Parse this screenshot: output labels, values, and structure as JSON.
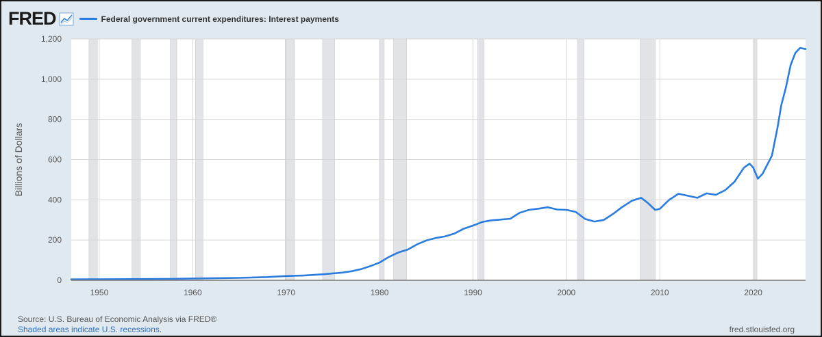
{
  "logo_text": "FRED",
  "logo_icon": "chart-line-icon",
  "footer": {
    "source": "Source: U.S. Bureau of Economic Analysis via FRED®",
    "shaded_note": "Shaded areas indicate U.S. recessions.",
    "site": "fred.stlouisfed.org"
  },
  "colors": {
    "line": "#2a7ddf",
    "plot_bg": "#ffffff",
    "page_bg": "#e1e9f0",
    "grid": "#d6d6d6",
    "recession": "#e1e3e6"
  },
  "chart_data": {
    "type": "line",
    "ylabel": "Billions of Dollars",
    "xlabel": "",
    "xlim": [
      1947,
      2025.6
    ],
    "ylim": [
      0,
      1200
    ],
    "yticks": [
      0,
      200,
      400,
      600,
      800,
      1000,
      1200
    ],
    "ytick_labels": [
      "0",
      "200",
      "400",
      "600",
      "800",
      "1,000",
      "1,200"
    ],
    "xticks": [
      1950,
      1960,
      1970,
      1980,
      1990,
      2000,
      2010,
      2020
    ],
    "xtick_labels": [
      "1950",
      "1960",
      "1970",
      "1980",
      "1990",
      "2000",
      "2010",
      "2020"
    ],
    "grid": true,
    "legend_position": "top-left",
    "recessions": [
      [
        1948.9,
        1949.8
      ],
      [
        1953.5,
        1954.4
      ],
      [
        1957.6,
        1958.3
      ],
      [
        1960.3,
        1961.1
      ],
      [
        1969.9,
        1970.9
      ],
      [
        1973.9,
        1975.2
      ],
      [
        1980.0,
        1980.5
      ],
      [
        1981.5,
        1982.9
      ],
      [
        1990.5,
        1991.2
      ],
      [
        2001.2,
        2001.9
      ],
      [
        2007.9,
        2009.5
      ],
      [
        2020.1,
        2020.4
      ]
    ],
    "series": [
      {
        "name": "Federal government current expenditures: Interest payments",
        "points": [
          [
            1947,
            4.5
          ],
          [
            1950,
            5
          ],
          [
            1955,
            6
          ],
          [
            1958,
            7
          ],
          [
            1960,
            9
          ],
          [
            1962,
            10
          ],
          [
            1965,
            12
          ],
          [
            1968,
            16
          ],
          [
            1970,
            21
          ],
          [
            1972,
            24
          ],
          [
            1974,
            30
          ],
          [
            1976,
            38
          ],
          [
            1977,
            45
          ],
          [
            1978,
            55
          ],
          [
            1979,
            70
          ],
          [
            1980,
            88
          ],
          [
            1981,
            116
          ],
          [
            1982,
            138
          ],
          [
            1983,
            152
          ],
          [
            1984,
            178
          ],
          [
            1985,
            198
          ],
          [
            1986,
            210
          ],
          [
            1987,
            218
          ],
          [
            1988,
            232
          ],
          [
            1989,
            256
          ],
          [
            1990,
            272
          ],
          [
            1991,
            290
          ],
          [
            1992,
            298
          ],
          [
            1993,
            302
          ],
          [
            1994,
            306
          ],
          [
            1995,
            336
          ],
          [
            1996,
            350
          ],
          [
            1997,
            356
          ],
          [
            1998,
            363
          ],
          [
            1999,
            352
          ],
          [
            2000,
            350
          ],
          [
            2001,
            340
          ],
          [
            2002,
            305
          ],
          [
            2003,
            292
          ],
          [
            2004,
            300
          ],
          [
            2005,
            330
          ],
          [
            2006,
            365
          ],
          [
            2007,
            395
          ],
          [
            2008,
            410
          ],
          [
            2008.7,
            385
          ],
          [
            2009.5,
            350
          ],
          [
            2010,
            355
          ],
          [
            2011,
            400
          ],
          [
            2012,
            430
          ],
          [
            2013,
            420
          ],
          [
            2014,
            410
          ],
          [
            2015,
            432
          ],
          [
            2016,
            425
          ],
          [
            2017,
            448
          ],
          [
            2018,
            490
          ],
          [
            2019,
            560
          ],
          [
            2019.6,
            580
          ],
          [
            2020,
            560
          ],
          [
            2020.5,
            505
          ],
          [
            2021,
            530
          ],
          [
            2022,
            620
          ],
          [
            2022.6,
            760
          ],
          [
            2023,
            870
          ],
          [
            2023.5,
            960
          ],
          [
            2024,
            1070
          ],
          [
            2024.5,
            1130
          ],
          [
            2025,
            1155
          ],
          [
            2025.6,
            1150
          ]
        ]
      }
    ]
  }
}
